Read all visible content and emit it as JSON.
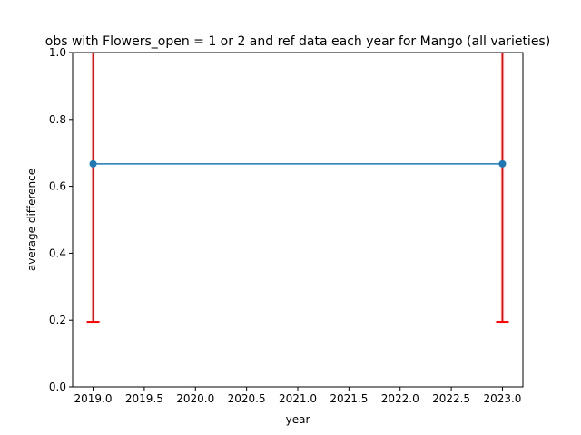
{
  "chart_data": {
    "type": "line",
    "title": "obs with Flowers_open = 1 or 2 and ref data each year for Mango (all varieties)",
    "xlabel": "year",
    "ylabel": "average difference",
    "xlim": [
      2018.8,
      2023.2
    ],
    "ylim": [
      0.0,
      1.0
    ],
    "x_ticks": [
      "2019.0",
      "2019.5",
      "2020.0",
      "2020.5",
      "2021.0",
      "2021.5",
      "2022.0",
      "2022.5",
      "2023.0"
    ],
    "y_ticks": [
      "0.0",
      "0.2",
      "0.4",
      "0.6",
      "0.8",
      "1.0"
    ],
    "grid": false,
    "series": [
      {
        "x": [
          2019,
          2023
        ],
        "values": [
          0.667,
          0.667
        ],
        "error_lower": [
          0.195,
          0.195
        ],
        "error_upper": [
          1.0,
          1.0
        ]
      }
    ],
    "colors": {
      "line": "#1f77b4",
      "errorbar": "#ff0000"
    }
  }
}
